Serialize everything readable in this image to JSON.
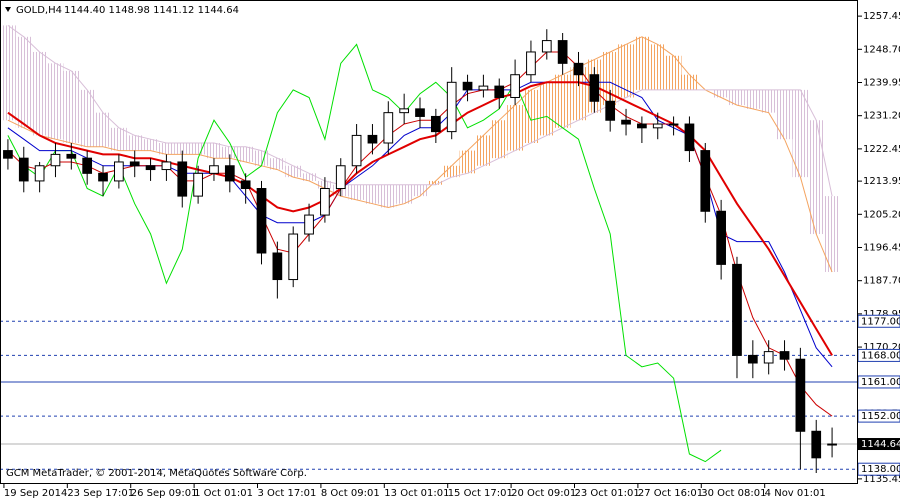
{
  "chart_data": {
    "type": "candlestick",
    "title": "GOLD,H4",
    "quote": "1144.40 1148.98 1141.12 1144.64",
    "copyright": "GCM MetaTrader, © 2001-2014, MetaQuotes Software Corp.",
    "categories": [
      "19 Sep 2014",
      null,
      null,
      null,
      "23 Sep 17:01",
      null,
      null,
      null,
      "26 Sep 09:01",
      null,
      null,
      null,
      "1 Oct 01:01",
      null,
      null,
      null,
      "3 Oct 17:01",
      null,
      null,
      null,
      "8 Oct 09:01",
      null,
      null,
      null,
      "13 Oct 01:01",
      null,
      null,
      null,
      "15 Oct 17:01",
      null,
      null,
      null,
      "20 Oct 09:01",
      null,
      null,
      null,
      "23 Oct 01:01",
      null,
      null,
      null,
      "27 Oct 16:01",
      null,
      null,
      null,
      "30 Oct 08:01",
      null,
      null,
      null,
      "4 Nov 01:01",
      null,
      null,
      null,
      null
    ],
    "open": [
      1222,
      1220,
      1214,
      1218,
      1221,
      1220,
      1216,
      1214,
      1219,
      1218,
      1217,
      1219,
      1210,
      1216,
      1218,
      1214,
      1212,
      1195,
      1188,
      1200,
      1205,
      1212,
      1218,
      1226,
      1224,
      1232,
      1233,
      1231,
      1227,
      1240,
      1238,
      1239,
      1236,
      1242,
      1248,
      1251,
      1245,
      1242,
      1235,
      1230,
      1229,
      1228,
      1229,
      1229,
      1222,
      1206,
      1192,
      1168,
      1166,
      1169,
      1167,
      1148,
      1144.4
    ],
    "high": [
      1225,
      1223,
      1219,
      1224,
      1224,
      1222,
      1218,
      1221,
      1222,
      1220,
      1221,
      1222,
      1218,
      1220,
      1221,
      1216,
      1214,
      1198,
      1202,
      1208,
      1215,
      1220,
      1229,
      1229,
      1235,
      1237,
      1236,
      1233,
      1244,
      1242,
      1242,
      1241,
      1246,
      1251,
      1254,
      1253,
      1248,
      1244,
      1238,
      1233,
      1231,
      1232,
      1231,
      1231,
      1224,
      1209,
      1194,
      1172,
      1172,
      1172,
      1170,
      1151,
      1148.98
    ],
    "low": [
      1217,
      1211,
      1211,
      1215,
      1217,
      1213,
      1210,
      1212,
      1215,
      1214,
      1214,
      1207,
      1208,
      1214,
      1211,
      1208,
      1192,
      1183,
      1186,
      1198,
      1203,
      1210,
      1216,
      1221,
      1221,
      1229,
      1228,
      1224,
      1225,
      1235,
      1236,
      1233,
      1234,
      1240,
      1246,
      1242,
      1239,
      1232,
      1227,
      1226,
      1224,
      1225,
      1226,
      1219,
      1203,
      1188,
      1162,
      1162,
      1163,
      1164,
      1138,
      1137,
      1141.12
    ],
    "close": [
      1220,
      1214,
      1218,
      1221,
      1220,
      1216,
      1214,
      1219,
      1218,
      1217,
      1219,
      1210,
      1216,
      1218,
      1214,
      1212,
      1195,
      1188,
      1200,
      1205,
      1212,
      1218,
      1226,
      1224,
      1232,
      1233,
      1231,
      1227,
      1240,
      1238,
      1239,
      1236,
      1242,
      1248,
      1251,
      1245,
      1242,
      1235,
      1230,
      1229,
      1228,
      1229,
      1229,
      1222,
      1206,
      1192,
      1168,
      1166,
      1169,
      1167,
      1148,
      1141,
      1144.64
    ],
    "cloud": {
      "up_color": "#f4a460",
      "down_color": "#d8bfd8",
      "senkou_a": [
        1230,
        1228,
        1226,
        1225,
        1224,
        1223,
        1223,
        1222,
        1222,
        1222,
        1221,
        1221,
        1221,
        1220,
        1220,
        1219,
        1218,
        1217,
        1215,
        1214,
        1212,
        1210,
        1209,
        1208,
        1207,
        1208,
        1210,
        1214,
        1218,
        1222,
        1226,
        1230,
        1234,
        1238,
        1240,
        1242,
        1244,
        1246,
        1248,
        1250,
        1252,
        1250,
        1247,
        1242,
        1238,
        1236,
        1234,
        1233,
        1232,
        1225,
        1215,
        1200,
        1190
      ],
      "senkou_b": [
        1255,
        1252,
        1248,
        1245,
        1243,
        1238,
        1232,
        1228,
        1226,
        1225,
        1224,
        1224,
        1224,
        1224,
        1223,
        1223,
        1222,
        1220,
        1218,
        1216,
        1214,
        1213,
        1213,
        1213,
        1213,
        1213,
        1213,
        1213,
        1215,
        1216,
        1218,
        1220,
        1222,
        1224,
        1226,
        1228,
        1230,
        1232,
        1234,
        1236,
        1238,
        1238,
        1238,
        1238,
        1238,
        1238,
        1238,
        1238,
        1238,
        1238,
        1238,
        1230,
        1210
      ]
    },
    "lines": [
      {
        "color": "#00e000",
        "width": 1,
        "values": [
          1226,
          1218,
          1215,
          1222,
          1222,
          1212,
          1210,
          1218,
          1208,
          1200,
          1187,
          1196,
          1220,
          1230,
          1224,
          1215,
          1218,
          1232,
          1238,
          1236,
          1225,
          1245,
          1250,
          1238,
          1236,
          1232,
          1237,
          1240,
          1236,
          1228,
          1230,
          1233,
          1240,
          1230,
          1231,
          1228,
          1225,
          1212,
          1200,
          1168,
          1165,
          1166,
          1162,
          1142,
          1140,
          1143,
          null,
          null,
          null,
          null,
          null,
          null,
          null
        ]
      },
      {
        "color": "#0000cc",
        "width": 1,
        "values": [
          1228,
          1225,
          1222,
          1222,
          1222,
          1220,
          1218,
          1218,
          1218,
          1218,
          1218,
          1216,
          1216,
          1216,
          1215,
          1210,
          1205,
          1203,
          1203,
          1203,
          1205,
          1212,
          1215,
          1218,
          1222,
          1226,
          1228,
          1228,
          1232,
          1238,
          1238,
          1238,
          1238,
          1240,
          1240,
          1240,
          1240,
          1240,
          1240,
          1238,
          1236,
          1230,
          1228,
          1226,
          1215,
          1200,
          1198,
          1198,
          1198,
          1190,
          1180,
          1170,
          1165
        ]
      },
      {
        "color": "#cc0000",
        "width": 1,
        "values": [
          1222,
          1218,
          1217,
          1219,
          1219,
          1218,
          1216,
          1217,
          1218,
          1218,
          1218,
          1214,
          1214,
          1216,
          1216,
          1214,
          1205,
          1196,
          1195,
          1200,
          1205,
          1212,
          1218,
          1222,
          1226,
          1229,
          1230,
          1230,
          1234,
          1237,
          1238,
          1238,
          1240,
          1244,
          1248,
          1248,
          1244,
          1238,
          1234,
          1231,
          1229,
          1229,
          1229,
          1226,
          1215,
          1205,
          1190,
          1178,
          1170,
          1168,
          1160,
          1155,
          1152
        ]
      },
      {
        "color": "#e00000",
        "width": 2,
        "values": [
          1232,
          1229,
          1226,
          1224,
          1223,
          1222,
          1221,
          1221,
          1220,
          1220,
          1219,
          1218,
          1217,
          1216,
          1215,
          1213,
          1210,
          1207,
          1206,
          1207,
          1209,
          1212,
          1216,
          1219,
          1221,
          1223,
          1225,
          1226,
          1229,
          1232,
          1234,
          1236,
          1237,
          1239,
          1240,
          1240,
          1240,
          1239,
          1237,
          1235,
          1233,
          1231,
          1229,
          1226,
          1222,
          1215,
          1208,
          1202,
          1196,
          1189,
          1182,
          1175,
          1168
        ]
      }
    ],
    "levels": [
      {
        "value": 1177,
        "label": "1177.00",
        "style": "dashed"
      },
      {
        "value": 1168,
        "label": "1168.00",
        "style": "dashed"
      },
      {
        "value": 1161,
        "label": "1161.00",
        "style": "solid"
      },
      {
        "value": 1152,
        "label": "1152.00",
        "style": "dashed"
      },
      {
        "value": 1138,
        "label": "1138.00",
        "style": "dashed"
      }
    ],
    "last_price": 1144.64,
    "ylim": [
      1134.1,
      1261.7
    ],
    "yticks": [
      1257.45,
      {
        "value": 1248.7,
        "label": "1248.70"
      },
      1239.95,
      {
        "value": 1231.2,
        "label": "1231.20"
      },
      1222.45,
      1213.95,
      {
        "value": 1205.2,
        "label": "1205.20"
      },
      1196.45,
      {
        "value": 1187.7,
        "label": "1187.70"
      },
      1178.95,
      {
        "value": 1170.2,
        "label": "1170.20"
      },
      1161.45,
      {
        "value": 1152.7,
        "label": "1152.70"
      },
      1143.95,
      1135.45
    ]
  }
}
